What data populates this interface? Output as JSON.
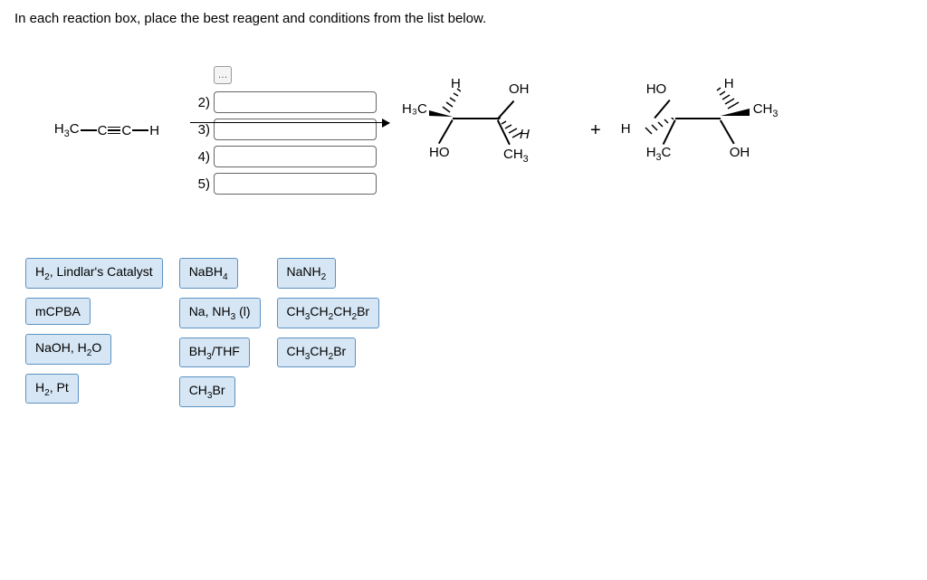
{
  "prompt": "In each reaction box, place the best reagent and conditions from the list below.",
  "starting_material": {
    "left": "H",
    "left_sub": "3",
    "left_atom": "C",
    "mid1": "C",
    "mid2": "C",
    "right": "H"
  },
  "steps": {
    "hint_glyph": "…",
    "labels": [
      "2)",
      "3)",
      "4)",
      "5)"
    ]
  },
  "product_a": {
    "atoms": {
      "h_top": "H",
      "oh_top": "OH",
      "h3c_left": "H₃C",
      "ho_bottom": "HO",
      "h_wedge": "H",
      "ch3_bottom": "CH"
    },
    "ch3_sub": "3"
  },
  "plus": "+",
  "product_b": {
    "atoms": {
      "ho_top": "HO",
      "h_top": "H",
      "ch3_right": "CH",
      "h_left": "H",
      "h3c_bottom": "H",
      "oh_bottom": "OH"
    },
    "h3c_text": "3",
    "h3c_pre": "C",
    "ch3_sub": "3"
  },
  "reagents": {
    "col1": [
      "H₂, Lindlar's Catalyst",
      "mCPBA",
      "NaOH, H₂O",
      "H₂, Pt"
    ],
    "col2": [
      "NaBH₄",
      "Na, NH₃ (l)",
      "BH₃/THF",
      "CH₃Br"
    ],
    "col3": [
      "NaNH₂",
      "CH₃CH₂CH₂Br",
      "CH₃CH₂Br"
    ]
  },
  "styling": {
    "reagent_bg": "#d6e6f4",
    "reagent_border": "#5b92c3",
    "dropbox_border": "#666"
  }
}
